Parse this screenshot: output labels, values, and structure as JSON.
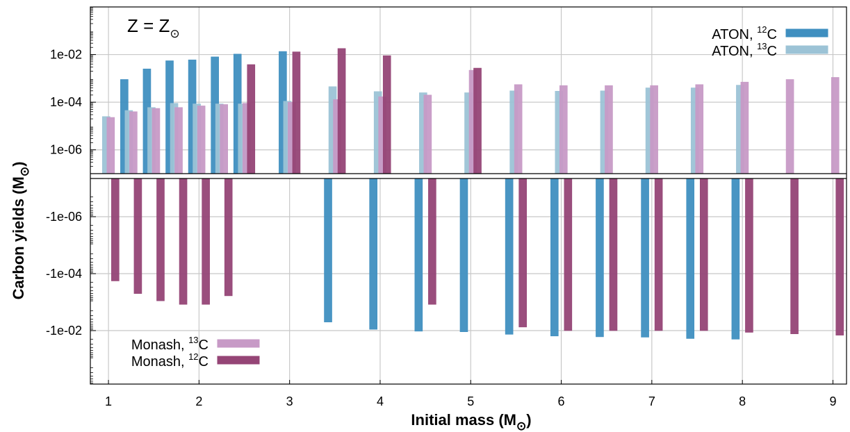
{
  "chart_data": {
    "type": "bar",
    "annotation": {
      "text": "Z = Z",
      "subscript": "⊙"
    },
    "xlabel": {
      "text": "Initial mass (M",
      "subscript": "⊙",
      "suffix": ")"
    },
    "ylabel": {
      "text": "Carbon yields (M",
      "subscript": "⊙",
      "suffix": ")"
    },
    "xlim": [
      0.8,
      9.15
    ],
    "xticks": [
      "1",
      "2",
      "3",
      "4",
      "5",
      "6",
      "7",
      "8",
      "9"
    ],
    "upper_panel": {
      "scale": "log",
      "ylim": [
        1e-07,
        1.0
      ],
      "yticks": [
        {
          "value": 1e-06,
          "label": "1e-06"
        },
        {
          "value": 0.0001,
          "label": "1e-04"
        },
        {
          "value": 0.01,
          "label": "1e-02"
        }
      ],
      "legend_position": "top-right"
    },
    "lower_panel": {
      "scale": "log",
      "ylim": [
        -2e-06,
        -0.001
      ],
      "yticks": [
        {
          "value": -1e-06,
          "label": "-1e-06"
        },
        {
          "value": -0.0001,
          "label": "-1e-04"
        },
        {
          "value": -0.01,
          "label": "-1e-02"
        }
      ],
      "legend_position": "bottom-left"
    },
    "series": [
      {
        "name": "ATON, ¹²C",
        "label_base": "ATON, ",
        "label_sup": "12",
        "label_el": "C",
        "color": "#3f8fc0",
        "panel": "upper",
        "offset": -0.15,
        "legend": "upper",
        "x": [
          1.25,
          1.5,
          1.75,
          2.0,
          2.25,
          2.5,
          3.0
        ],
        "values": [
          0.0009,
          0.0025,
          0.0055,
          0.006,
          0.008,
          0.0105,
          0.0135
        ]
      },
      {
        "name": "ATON, ¹³C",
        "label_base": "ATON, ",
        "label_sup": "13",
        "label_el": "C",
        "color": "#9cc3d6",
        "panel": "upper",
        "offset": -0.05,
        "legend": "upper",
        "x": [
          1.0,
          1.25,
          1.5,
          1.75,
          2.0,
          2.25,
          2.5,
          3.0,
          3.5,
          4.0,
          4.5,
          5.0,
          5.5,
          6.0,
          6.5,
          7.0,
          7.5,
          8.0
        ],
        "values": [
          2.5e-05,
          4.5e-05,
          6e-05,
          9e-05,
          8.5e-05,
          8.5e-05,
          8.5e-05,
          0.00011,
          0.00045,
          0.00028,
          0.00025,
          0.00025,
          0.0003,
          0.00029,
          0.0003,
          0.0004,
          0.0004,
          0.00052
        ]
      },
      {
        "name": "Monash, ¹³C",
        "label_base": "Monash, ",
        "label_sup": "13",
        "label_el": "C",
        "color": "#c79ac6",
        "panel": "upper",
        "offset": 0.05,
        "legend": "lower",
        "x": [
          1.0,
          1.25,
          1.5,
          1.75,
          2.0,
          2.25,
          2.5,
          3.0,
          3.5,
          4.0,
          4.5,
          5.0,
          5.5,
          6.0,
          6.5,
          7.0,
          7.5,
          8.0,
          8.5,
          9.0
        ],
        "values": [
          2.3e-05,
          4e-05,
          5.5e-05,
          6e-05,
          7e-05,
          8e-05,
          9e-05,
          0.0001,
          0.00013,
          0.00017,
          0.0002,
          0.0022,
          0.00055,
          0.0005,
          0.0005,
          0.0005,
          0.00055,
          0.0007,
          0.0009,
          0.0011
        ]
      },
      {
        "name": "Monash, ¹²C",
        "label_base": "Monash, ",
        "label_sup": "12",
        "label_el": "C",
        "color": "#954576",
        "panel": "upper",
        "offset": 0.15,
        "legend": "lower",
        "x": [
          2.5,
          3.0,
          3.5,
          4.0,
          5.0
        ],
        "values": [
          0.0038,
          0.013,
          0.018,
          0.009,
          0.0027
        ]
      },
      {
        "name": "ATON, ¹²C (negative)",
        "color": "#3f8fc0",
        "panel": "lower",
        "offset": -0.15,
        "x": [
          3.5,
          4.0,
          4.5,
          5.0,
          5.5,
          6.0,
          6.5,
          7.0,
          7.5,
          8.0
        ],
        "values": [
          -0.005,
          -0.009,
          -0.0105,
          -0.011,
          -0.0135,
          -0.0155,
          -0.0165,
          -0.017,
          -0.019,
          -0.02
        ]
      },
      {
        "name": "Monash, ¹²C (negative)",
        "color": "#954576",
        "panel": "lower",
        "offset": 0.15,
        "x": [
          1.0,
          1.25,
          1.5,
          1.75,
          2.0,
          2.25,
          4.5,
          5.5,
          6.0,
          6.5,
          7.0,
          7.5,
          8.0,
          8.5,
          9.0
        ],
        "values": [
          -0.00018,
          -0.0005,
          -0.0009,
          -0.0012,
          -0.0012,
          -0.0006,
          -0.0012,
          -0.0075,
          -0.01,
          -0.01,
          -0.01,
          -0.01,
          -0.0115,
          -0.013,
          -0.0145
        ]
      }
    ]
  }
}
